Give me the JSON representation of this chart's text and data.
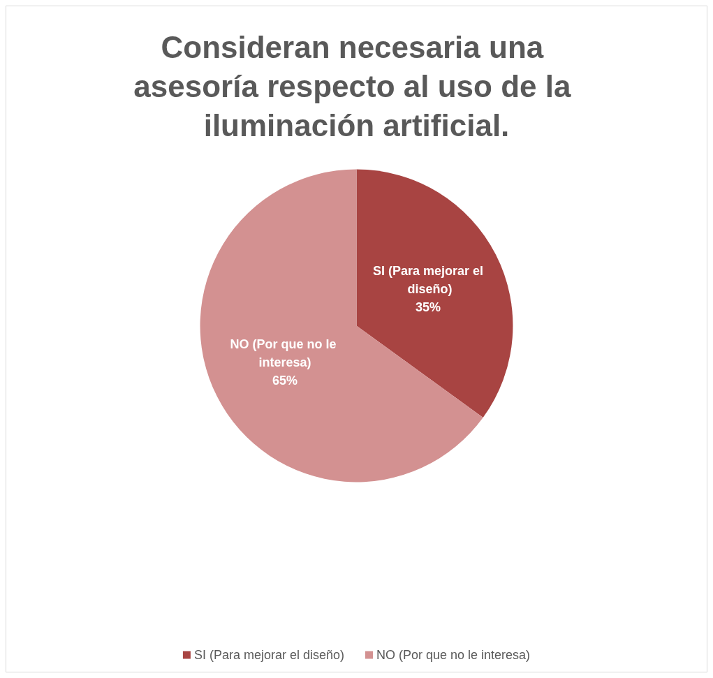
{
  "chart_data": {
    "type": "pie",
    "title": "Consideran necesaria una asesoría respecto al uso de la iluminación artificial.",
    "categories": [
      "SI (Para mejorar el diseño)",
      "NO (Por que no le interesa)"
    ],
    "values": [
      35,
      65
    ],
    "colors": [
      "#a84442",
      "#d39191"
    ],
    "value_labels": [
      "35%",
      "65%"
    ],
    "legend": "bottom"
  }
}
